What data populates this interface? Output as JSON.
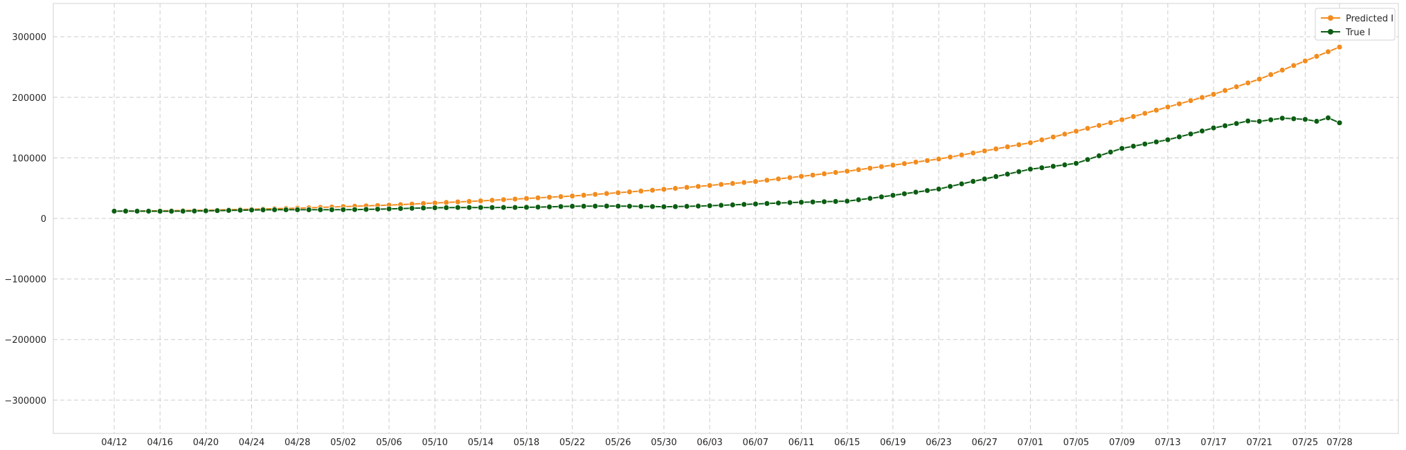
{
  "chart_data": {
    "type": "line",
    "title": "",
    "xlabel": "",
    "ylabel": "",
    "ylim": [
      -355000,
      355000
    ],
    "y_ticks": [
      -300000,
      -200000,
      -100000,
      0,
      100000,
      200000,
      300000
    ],
    "y_tick_labels": [
      "−300000",
      "−200000",
      "−100000",
      "0",
      "100000",
      "200000",
      "300000"
    ],
    "x_start": "04/12",
    "x_end": "07/28",
    "x_tick_labels": [
      "04/12",
      "04/16",
      "04/20",
      "04/24",
      "04/28",
      "05/02",
      "05/06",
      "05/10",
      "05/14",
      "05/18",
      "05/22",
      "05/26",
      "05/30",
      "06/03",
      "06/07",
      "06/11",
      "06/15",
      "06/19",
      "06/23",
      "06/27",
      "07/01",
      "07/05",
      "07/09",
      "07/13",
      "07/17",
      "07/21",
      "07/25",
      "07/28"
    ],
    "grid": true,
    "grid_style": "dashed",
    "legend_position": "top-right",
    "series": [
      {
        "name": "Predicted I",
        "color": "#f28c1e",
        "marker": "circle",
        "keypoints": [
          [
            "04/12",
            12000
          ],
          [
            "04/20",
            13500
          ],
          [
            "04/28",
            17000
          ],
          [
            "05/06",
            22000
          ],
          [
            "05/14",
            29000
          ],
          [
            "05/22",
            37000
          ],
          [
            "05/30",
            48000
          ],
          [
            "06/07",
            61000
          ],
          [
            "06/15",
            78000
          ],
          [
            "06/23",
            98000
          ],
          [
            "07/01",
            125000
          ],
          [
            "07/09",
            163000
          ],
          [
            "07/17",
            205000
          ],
          [
            "07/21",
            230000
          ],
          [
            "07/25",
            260000
          ],
          [
            "07/28",
            283000
          ]
        ]
      },
      {
        "name": "True I",
        "color": "#0b5d12",
        "marker": "circle",
        "keypoints": [
          [
            "04/12",
            11500
          ],
          [
            "04/20",
            13000
          ],
          [
            "04/28",
            14000
          ],
          [
            "05/06",
            16000
          ],
          [
            "05/14",
            18000
          ],
          [
            "05/22",
            20000
          ],
          [
            "05/30",
            19500
          ],
          [
            "06/07",
            23500
          ],
          [
            "06/15",
            29000
          ],
          [
            "06/23",
            48000
          ],
          [
            "07/01",
            82000
          ],
          [
            "07/05",
            91000
          ],
          [
            "07/09",
            115000
          ],
          [
            "07/13",
            130000
          ],
          [
            "07/17",
            150000
          ],
          [
            "07/19",
            157000
          ],
          [
            "07/20",
            161000
          ],
          [
            "07/21",
            160000
          ],
          [
            "07/23",
            165000
          ],
          [
            "07/25",
            163000
          ],
          [
            "07/26",
            160000
          ],
          [
            "07/27",
            166000
          ],
          [
            "07/28",
            158000
          ]
        ]
      }
    ]
  }
}
